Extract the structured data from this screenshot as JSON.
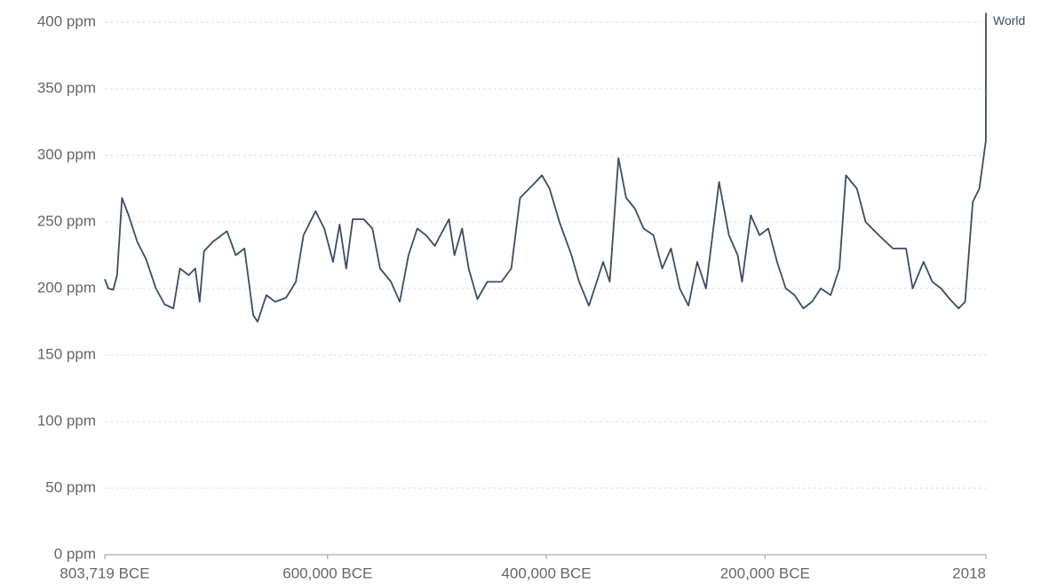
{
  "chart_data": {
    "type": "line",
    "x": [
      -803719,
      -800500,
      -796000,
      -792500,
      -788000,
      -782000,
      -774000,
      -766000,
      -757000,
      -749000,
      -741000,
      -735000,
      -727000,
      -721000,
      -717000,
      -713000,
      -705000,
      -692000,
      -684000,
      -676000,
      -668000,
      -664000,
      -656000,
      -648000,
      -638000,
      -629000,
      -622000,
      -611000,
      -603000,
      -595000,
      -589000,
      -583000,
      -577000,
      -567000,
      -559000,
      -552000,
      -542000,
      -534000,
      -526000,
      -518000,
      -510000,
      -502000,
      -489000,
      -484000,
      -477000,
      -471000,
      -463000,
      -454000,
      -441000,
      -432000,
      -424000,
      -412000,
      -404000,
      -397000,
      -388000,
      -377000,
      -370000,
      -361000,
      -348000,
      -342000,
      -334000,
      -327000,
      -319000,
      -311000,
      -302000,
      -294000,
      -286000,
      -278000,
      -270000,
      -262000,
      -254000,
      -242000,
      -233000,
      -225000,
      -221000,
      -213000,
      -205000,
      -197000,
      -189000,
      -181000,
      -173000,
      -165000,
      -157000,
      -149000,
      -140000,
      -132000,
      -126000,
      -116000,
      -108000,
      -96000,
      -83000,
      -71000,
      -65000,
      -55000,
      -47000,
      -39000,
      -31000,
      -23000,
      -17000,
      -10000,
      -4000,
      1950,
      2000,
      2018
    ],
    "series": [
      {
        "name": "World",
        "color": "#3d4b66",
        "values": [
          207,
          200,
          199,
          210,
          268,
          255,
          235,
          222,
          200,
          188,
          185,
          215,
          210,
          215,
          190,
          228,
          235,
          243,
          225,
          230,
          180,
          175,
          195,
          190,
          193,
          205,
          240,
          258,
          245,
          220,
          248,
          215,
          252,
          252,
          245,
          215,
          205,
          190,
          225,
          245,
          240,
          232,
          252,
          225,
          245,
          215,
          192,
          205,
          205,
          215,
          268,
          278,
          285,
          275,
          250,
          225,
          205,
          187,
          220,
          205,
          298,
          268,
          260,
          245,
          240,
          215,
          230,
          200,
          187,
          220,
          200,
          280,
          240,
          225,
          205,
          255,
          240,
          245,
          220,
          200,
          195,
          185,
          190,
          200,
          195,
          215,
          285,
          275,
          250,
          240,
          230,
          230,
          200,
          220,
          205,
          200,
          192,
          185,
          190,
          265,
          275,
          311,
          370,
          407
        ]
      }
    ],
    "xlim": [
      -803719,
      2018
    ],
    "xticks": [
      {
        "value": -803719,
        "label": "803,719 BCE"
      },
      {
        "value": -600000,
        "label": "600,000 BCE"
      },
      {
        "value": -400000,
        "label": "400,000 BCE"
      },
      {
        "value": -200000,
        "label": "200,000 BCE"
      },
      2018
    ],
    "ylim": [
      0,
      400
    ],
    "yticks": [
      {
        "value": 0,
        "label": "0 ppm"
      },
      {
        "value": 50,
        "label": "50 ppm"
      },
      {
        "value": 100,
        "label": "100 ppm"
      },
      {
        "value": 150,
        "label": "150 ppm"
      },
      {
        "value": 200,
        "label": "200 ppm"
      },
      {
        "value": 250,
        "label": "250 ppm"
      },
      {
        "value": 300,
        "label": "300 ppm"
      },
      {
        "value": 350,
        "label": "350 ppm"
      },
      {
        "value": 400,
        "label": "400 ppm"
      }
    ],
    "grid": true
  }
}
